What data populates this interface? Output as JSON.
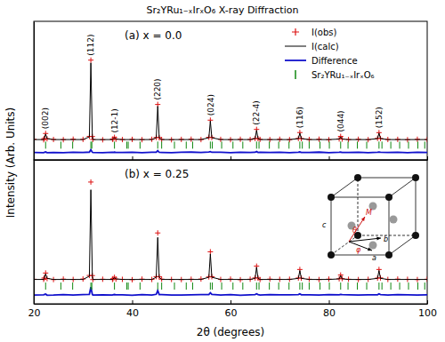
{
  "chart_data": [
    {
      "type": "line",
      "title": "Sr₂YRu₁₋ₓIrₓO₆ X-ray Diffraction",
      "y_label": "Intensity (Arb. Units)",
      "panel_label": "(a) x = 0.0",
      "x": [
        20,
        22,
        22.1,
        22.4,
        22.7,
        24,
        26,
        28,
        30,
        31.3,
        31.6,
        31.9,
        32,
        34,
        36,
        36.1,
        36.4,
        36.7,
        38,
        40,
        42,
        44,
        44.9,
        45.2,
        45.5,
        46,
        48,
        50,
        52,
        54,
        55.6,
        55.9,
        56.2,
        58,
        60,
        62,
        64,
        65,
        65.3,
        65.6,
        66,
        68,
        70,
        72,
        73.8,
        74.1,
        74.4,
        76,
        78,
        80,
        82.1,
        82.4,
        82.7,
        84,
        86,
        88,
        89.9,
        90.2,
        90.5,
        92,
        94,
        96,
        98,
        100
      ],
      "series": [
        {
          "name": "I(obs)",
          "type": "scatter",
          "marker": "plus",
          "color": "#dd1111",
          "values": [
            2.3,
            1.8,
            3.2,
            8.6,
            2.9,
            2.1,
            1.9,
            2.4,
            2.2,
            5.4,
            88,
            5.3,
            2.1,
            1.8,
            2.3,
            2.6,
            4.4,
            2.4,
            2.0,
            2.2,
            1.9,
            2.3,
            4.3,
            40,
            4.2,
            2.1,
            1.8,
            2.2,
            2.4,
            2.0,
            4.5,
            23,
            4.2,
            2.2,
            1.9,
            2.3,
            2.1,
            3.2,
            13,
            3.1,
            2.2,
            2.0,
            2.3,
            1.9,
            3.2,
            9.6,
            3.1,
            2.1,
            2.4,
            1.8,
            2.7,
            5.4,
            2.6,
            2.0,
            2.3,
            1.9,
            3.3,
            9.5,
            3.2,
            2.1,
            2.2,
            1.8,
            2.3,
            2.0
          ]
        },
        {
          "name": "I(calc)",
          "type": "line",
          "color": "#000000",
          "values": [
            2,
            2,
            3,
            8,
            3,
            2,
            2,
            2,
            2,
            5,
            85,
            5,
            2,
            2,
            2,
            2.5,
            4,
            2.5,
            2,
            2,
            2,
            2,
            4,
            38,
            4,
            2,
            2,
            2,
            2,
            2,
            4,
            22,
            4,
            2,
            2,
            2,
            2,
            3,
            12,
            3,
            2,
            2,
            2,
            2,
            3,
            9,
            3,
            2,
            2,
            2,
            2.5,
            5,
            2.5,
            2,
            2,
            2,
            3,
            9,
            3,
            2,
            2,
            2,
            2,
            2
          ]
        },
        {
          "name": "Difference",
          "type": "line",
          "color": "#1111cc",
          "values": [
            -11.9,
            -12.2,
            -11.8,
            -11.4,
            -12.1,
            -11.9,
            -12.1,
            -11.8,
            -11.9,
            -11.6,
            -9,
            -11.7,
            -11.9,
            -12.2,
            -11.7,
            -11.9,
            -11.6,
            -11.9,
            -12,
            -11.8,
            -12.1,
            -11.7,
            -11.7,
            -10,
            -11.8,
            -11.9,
            -12.2,
            -11.8,
            -11.6,
            -12,
            -11.5,
            -11,
            -11.8,
            -11.8,
            -12.1,
            -11.7,
            -11.9,
            -11.8,
            -11,
            -11.9,
            -11.8,
            -12,
            -11.7,
            -12.1,
            -11.8,
            -11.4,
            -11.9,
            -11.9,
            -11.6,
            -12.2,
            -11.8,
            -11.6,
            -11.9,
            -12,
            -11.7,
            -12.1,
            -11.7,
            -11.5,
            -11.8,
            -11.9,
            -11.8,
            -12.2,
            -11.7,
            -12
          ]
        },
        {
          "name": "Sr₂YRu₁₋ₓIrₓO₆",
          "type": "scatter",
          "marker": "tick",
          "color": "#118811",
          "x": [
            22.4,
            25.5,
            27.9,
            31.6,
            31.8,
            36.4,
            38.9,
            39.2,
            41.6,
            45.2,
            46.0,
            48.6,
            51.0,
            52.3,
            55.9,
            56.3,
            58.2,
            60.5,
            62.5,
            65.3,
            65.8,
            67.9,
            69.8,
            71.9,
            74.1,
            74.6,
            76.0,
            78.2,
            80.1,
            82.4,
            83.9,
            85.8,
            87.7,
            90.2,
            90.8,
            92.6,
            94.4,
            96.2,
            98.1,
            99.5
          ],
          "values": [
            -4,
            -4,
            -4,
            -4,
            -4,
            -4,
            -4,
            -4,
            -4,
            -4,
            -4,
            -4,
            -4,
            -4,
            -4,
            -4,
            -4,
            -4,
            -4,
            -4,
            -4,
            -4,
            -4,
            -4,
            -4,
            -4,
            -4,
            -4,
            -4,
            -4,
            -4,
            -4,
            -4,
            -4,
            -4,
            -4,
            -4,
            -4,
            -4,
            -4
          ]
        }
      ],
      "annotations": [
        {
          "text": "(002)",
          "x": 22.4
        },
        {
          "text": "(112)",
          "x": 31.6
        },
        {
          "text": "(12-1)",
          "x": 36.4
        },
        {
          "text": "(220)",
          "x": 45.2
        },
        {
          "text": "(024)",
          "x": 55.9
        },
        {
          "text": "(22-4)",
          "x": 65.3
        },
        {
          "text": "(116)",
          "x": 74.1
        },
        {
          "text": "(044)",
          "x": 82.4
        },
        {
          "text": "(152)",
          "x": 90.2
        }
      ],
      "xlim": [
        20,
        100
      ],
      "xticks": [
        20,
        40,
        60,
        80,
        100
      ],
      "ylim": [
        -20,
        130
      ],
      "tick_labels": false,
      "legend": "upper right"
    },
    {
      "type": "line",
      "panel_label": "(b) x = 0.25",
      "x_label": "2θ (degrees)",
      "x": [
        20,
        22,
        22.1,
        22.4,
        22.7,
        24,
        26,
        28,
        30,
        31.3,
        31.6,
        31.9,
        32,
        34,
        36,
        36.1,
        36.4,
        36.7,
        38,
        40,
        42,
        44,
        44.9,
        45.2,
        45.5,
        46,
        48,
        50,
        52,
        54,
        55.6,
        55.9,
        56.2,
        58,
        60,
        62,
        64,
        65,
        65.3,
        65.6,
        66,
        68,
        70,
        72,
        73.8,
        74.1,
        74.4,
        76,
        78,
        80,
        82.1,
        82.4,
        82.7,
        84,
        86,
        88,
        89.9,
        90.2,
        90.5,
        92,
        94,
        96,
        98,
        100
      ],
      "series": [
        {
          "type": "scatter",
          "marker": "plus",
          "color": "#dd1111",
          "values": [
            2.2,
            2.1,
            3.3,
            7.8,
            2.8,
            1.9,
            2.3,
            2.0,
            2.4,
            5.6,
            90,
            5.5,
            1.9,
            2.2,
            2.0,
            2.7,
            3.9,
            2.3,
            2.1,
            1.8,
            2.3,
            2.0,
            4.6,
            44,
            4.4,
            2.3,
            2.0,
            1.9,
            2.2,
            2.4,
            4.3,
            27,
            4.5,
            2.0,
            2.3,
            1.8,
            2.2,
            3.4,
            14,
            3.3,
            1.9,
            2.3,
            2.1,
            2.2,
            3.3,
            11,
            3.2,
            2.2,
            1.9,
            2.3,
            2.6,
            6.0,
            2.8,
            2.2,
            1.9,
            2.1,
            3.2,
            11,
            3.4,
            2.0,
            2.3,
            2.1,
            1.9,
            2.2
          ]
        },
        {
          "type": "line",
          "color": "#000000",
          "values": [
            2,
            2,
            3,
            7,
            3,
            2,
            2,
            2,
            2,
            5,
            83,
            5,
            2,
            2,
            2,
            2.5,
            3.5,
            2.5,
            2,
            2,
            2,
            2,
            4,
            40,
            4,
            2,
            2,
            2,
            2,
            2,
            4,
            25,
            4,
            2,
            2,
            2,
            2,
            3,
            13,
            3,
            2,
            2,
            2,
            2,
            3,
            10,
            3,
            2,
            2,
            2,
            2.5,
            5.5,
            2.5,
            2,
            2,
            2,
            3,
            10,
            3,
            2,
            2,
            2,
            2,
            2
          ]
        },
        {
          "type": "line",
          "color": "#1111cc",
          "values": [
            -12,
            -11.9,
            -11.7,
            -11.2,
            -12.2,
            -12.1,
            -11.7,
            -12,
            -11.6,
            -11.4,
            -5,
            -11.5,
            -12.1,
            -11.8,
            -12,
            -11.8,
            -11.6,
            -11.8,
            -11.9,
            -12.2,
            -11.7,
            -12,
            -11.4,
            -8,
            -11.6,
            -11.7,
            -12,
            -12.1,
            -11.8,
            -11.6,
            -11.7,
            -10,
            -11.5,
            -12,
            -11.7,
            -12.2,
            -11.8,
            -11.6,
            -11,
            -11.7,
            -12.1,
            -11.7,
            -11.9,
            -11.8,
            -11.7,
            -11,
            -11.8,
            -11.8,
            -12.1,
            -11.7,
            -11.9,
            -11.5,
            -11.7,
            -11.8,
            -12.1,
            -11.9,
            -11.8,
            -11,
            -11.6,
            -12,
            -11.7,
            -11.9,
            -12.1,
            -11.8
          ]
        },
        {
          "type": "scatter",
          "marker": "tick",
          "color": "#118811",
          "x": [
            22.4,
            25.5,
            27.9,
            31.6,
            31.8,
            36.4,
            38.9,
            39.2,
            41.6,
            45.2,
            46.0,
            48.6,
            51.0,
            52.3,
            55.9,
            56.3,
            58.2,
            60.5,
            62.5,
            65.3,
            65.8,
            67.9,
            69.8,
            71.9,
            74.1,
            74.6,
            76.0,
            78.2,
            80.1,
            82.4,
            83.9,
            85.8,
            87.7,
            90.2,
            90.8,
            92.6,
            94.4,
            96.2,
            98.1,
            99.5
          ],
          "values": [
            -4,
            -4,
            -4,
            -4,
            -4,
            -4,
            -4,
            -4,
            -4,
            -4,
            -4,
            -4,
            -4,
            -4,
            -4,
            -4,
            -4,
            -4,
            -4,
            -4,
            -4,
            -4,
            -4,
            -4,
            -4,
            -4,
            -4,
            -4,
            -4,
            -4,
            -4,
            -4,
            -4,
            -4,
            -4,
            -4,
            -4,
            -4,
            -4,
            -4
          ]
        }
      ],
      "inset_labels": [
        "c",
        "a",
        "b",
        "M",
        "θ",
        "φ"
      ],
      "xlim": [
        20,
        100
      ],
      "xticks": [
        20,
        40,
        60,
        80,
        100
      ],
      "ylim": [
        -20,
        110
      ],
      "tick_labels": "x"
    }
  ]
}
